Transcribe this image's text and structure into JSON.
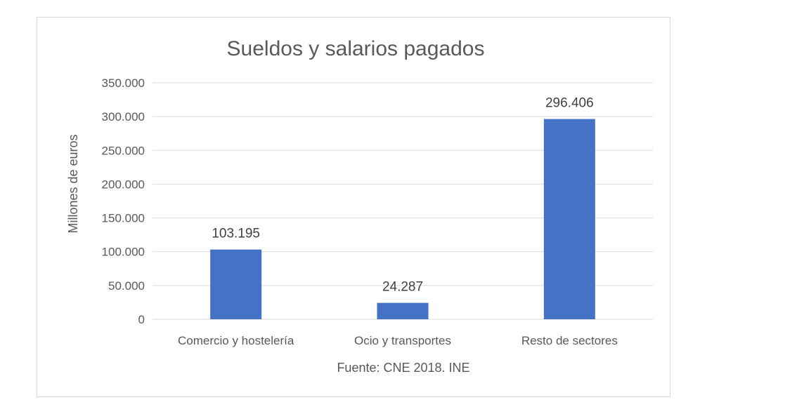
{
  "chart_data": {
    "type": "bar",
    "title": "Sueldos y salarios pagados",
    "ylabel": "Millones de euros",
    "xlabel": "Fuente: CNE 2018. INE",
    "categories": [
      "Comercio y hostelería",
      "Ocio y transportes",
      "Resto de sectores"
    ],
    "values": [
      103195,
      24287,
      296406
    ],
    "data_labels": [
      "103.195",
      "24.287",
      "296.406"
    ],
    "ylim": [
      0,
      350000
    ],
    "yticks": [
      0,
      50000,
      100000,
      150000,
      200000,
      250000,
      300000,
      350000
    ],
    "ytick_labels": [
      "0",
      "50.000",
      "100.000",
      "150.000",
      "200.000",
      "250.000",
      "300.000",
      "350.000"
    ],
    "grid": true,
    "bar_color": "#4472C4"
  }
}
